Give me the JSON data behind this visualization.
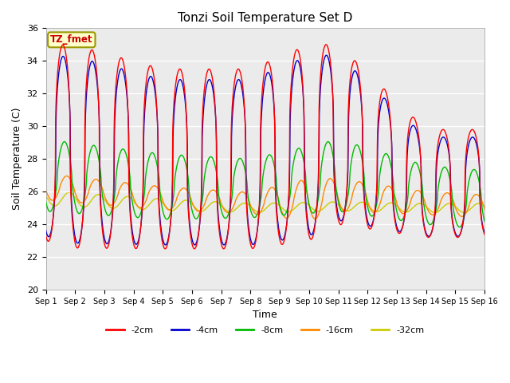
{
  "title": "Tonzi Soil Temperature Set D",
  "xlabel": "Time",
  "ylabel": "Soil Temperature (C)",
  "annotation": "TZ_fmet",
  "ylim": [
    20,
    36
  ],
  "xlim": [
    0,
    15
  ],
  "background_color": "#ebebeb",
  "series_colors": {
    "-2cm": "#ff0000",
    "-4cm": "#0000cc",
    "-8cm": "#00bb00",
    "-16cm": "#ff8800",
    "-32cm": "#cccc00"
  },
  "tick_labels": [
    "Sep 1",
    "Sep 2",
    "Sep 3",
    "Sep 4",
    "Sep 5",
    "Sep 6",
    "Sep 7",
    "Sep 8",
    "Sep 9",
    "Sep 10",
    "Sep 11",
    "Sep 12",
    "Sep 13",
    "Sep 14",
    "Sep 15",
    "Sep 16"
  ],
  "num_points_per_day": 96
}
